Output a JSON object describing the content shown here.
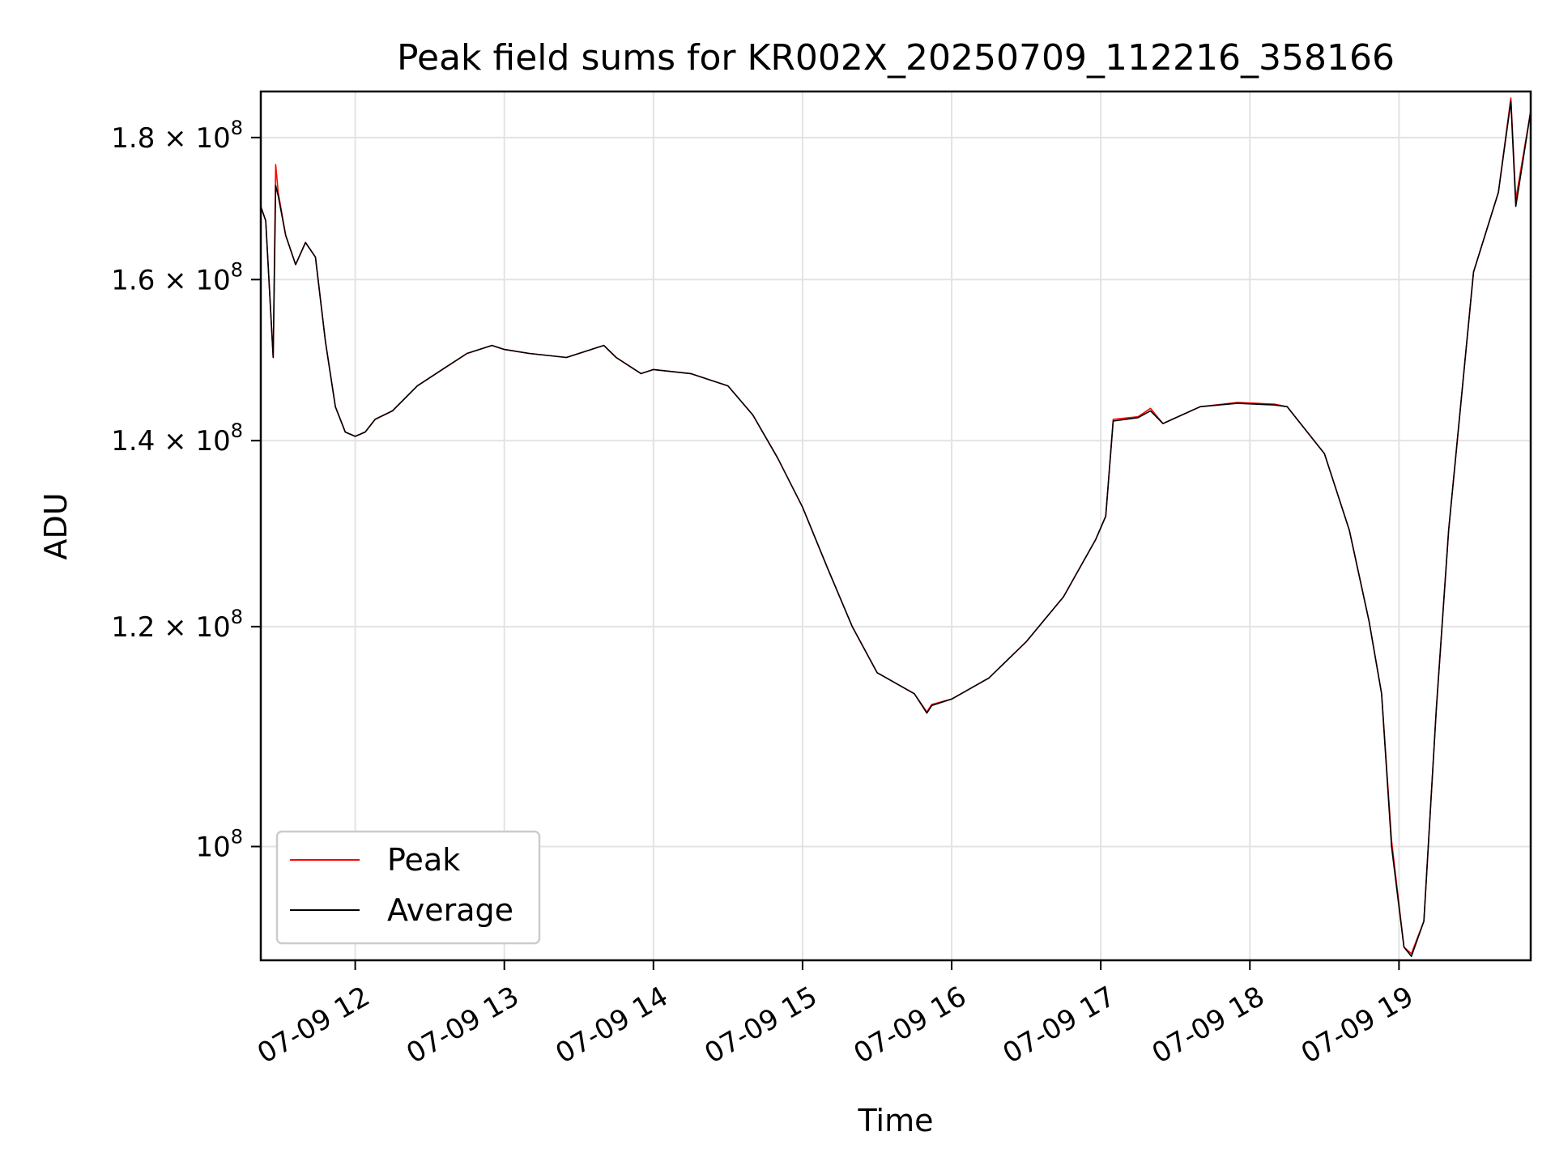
{
  "chart_data": {
    "type": "line",
    "title": "Peak field sums for KR002X_20250709_112216_358166",
    "xlabel": "Time",
    "ylabel": "ADU",
    "y_scale": "log",
    "grid": true,
    "legend_position": "lower-left",
    "xlim": [
      "2025-07-09T11:22",
      "2025-07-09T19:53"
    ],
    "ylim": [
      91000000,
      187000000
    ],
    "x_ticks": [
      {
        "t": "2025-07-09T12:00",
        "label": "07-09 12"
      },
      {
        "t": "2025-07-09T13:00",
        "label": "07-09 13"
      },
      {
        "t": "2025-07-09T14:00",
        "label": "07-09 14"
      },
      {
        "t": "2025-07-09T15:00",
        "label": "07-09 15"
      },
      {
        "t": "2025-07-09T16:00",
        "label": "07-09 16"
      },
      {
        "t": "2025-07-09T17:00",
        "label": "07-09 17"
      },
      {
        "t": "2025-07-09T18:00",
        "label": "07-09 18"
      },
      {
        "t": "2025-07-09T19:00",
        "label": "07-09 19"
      }
    ],
    "y_ticks": [
      {
        "v": 100000000,
        "mantissa": "",
        "exp": "8"
      },
      {
        "v": 120000000,
        "mantissa": "1.2",
        "exp": "8"
      },
      {
        "v": 140000000,
        "mantissa": "1.4",
        "exp": "8"
      },
      {
        "v": 160000000,
        "mantissa": "1.6",
        "exp": "8"
      },
      {
        "v": 180000000,
        "mantissa": "1.8",
        "exp": "8"
      }
    ],
    "x": [
      "2025-07-09T11:22",
      "2025-07-09T11:24",
      "2025-07-09T11:27",
      "2025-07-09T11:28",
      "2025-07-09T11:29",
      "2025-07-09T11:32",
      "2025-07-09T11:36",
      "2025-07-09T11:40",
      "2025-07-09T11:44",
      "2025-07-09T11:48",
      "2025-07-09T11:52",
      "2025-07-09T11:56",
      "2025-07-09T12:00",
      "2025-07-09T12:04",
      "2025-07-09T12:08",
      "2025-07-09T12:15",
      "2025-07-09T12:25",
      "2025-07-09T12:35",
      "2025-07-09T12:45",
      "2025-07-09T12:55",
      "2025-07-09T13:00",
      "2025-07-09T13:10",
      "2025-07-09T13:25",
      "2025-07-09T13:40",
      "2025-07-09T13:45",
      "2025-07-09T13:55",
      "2025-07-09T14:00",
      "2025-07-09T14:15",
      "2025-07-09T14:30",
      "2025-07-09T14:40",
      "2025-07-09T14:50",
      "2025-07-09T15:00",
      "2025-07-09T15:10",
      "2025-07-09T15:20",
      "2025-07-09T15:30",
      "2025-07-09T15:45",
      "2025-07-09T15:50",
      "2025-07-09T15:52",
      "2025-07-09T16:00",
      "2025-07-09T16:15",
      "2025-07-09T16:30",
      "2025-07-09T16:45",
      "2025-07-09T16:58",
      "2025-07-09T17:02",
      "2025-07-09T17:05",
      "2025-07-09T17:15",
      "2025-07-09T17:20",
      "2025-07-09T17:25",
      "2025-07-09T17:40",
      "2025-07-09T17:55",
      "2025-07-09T18:10",
      "2025-07-09T18:15",
      "2025-07-09T18:30",
      "2025-07-09T18:40",
      "2025-07-09T18:48",
      "2025-07-09T18:53",
      "2025-07-09T18:57",
      "2025-07-09T19:02",
      "2025-07-09T19:05",
      "2025-07-09T19:10",
      "2025-07-09T19:15",
      "2025-07-09T19:20",
      "2025-07-09T19:30",
      "2025-07-09T19:40",
      "2025-07-09T19:45",
      "2025-07-09T19:47",
      "2025-07-09T19:53"
    ],
    "series": [
      {
        "name": "Peak",
        "color": "#ff0000",
        "values": [
          170000000,
          168000000,
          150000000,
          176000000,
          172000000,
          166000000,
          162000000,
          165000000,
          163000000,
          152000000,
          144000000,
          141000000,
          140500000,
          141000000,
          142500000,
          143500000,
          146500000,
          148500000,
          150500000,
          151500000,
          151000000,
          150500000,
          150000000,
          151500000,
          150000000,
          148000000,
          148500000,
          148000000,
          146500000,
          143000000,
          138000000,
          132500000,
          126000000,
          120000000,
          115500000,
          113500000,
          111800000,
          112500000,
          113000000,
          115000000,
          118500000,
          123000000,
          129000000,
          131500000,
          142500000,
          142800000,
          143800000,
          142000000,
          144000000,
          144500000,
          144300000,
          144000000,
          138500000,
          130000000,
          120500000,
          113500000,
          100500000,
          92000000,
          91500000,
          94000000,
          112000000,
          130000000,
          161000000,
          172000000,
          186000000,
          171000000,
          184000000
        ]
      },
      {
        "name": "Average",
        "color": "#000000",
        "values": [
          170000000,
          168000000,
          150000000,
          173000000,
          171500000,
          166000000,
          162000000,
          165000000,
          163000000,
          152000000,
          144000000,
          141000000,
          140500000,
          141000000,
          142500000,
          143500000,
          146500000,
          148500000,
          150500000,
          151500000,
          151000000,
          150500000,
          150000000,
          151500000,
          150000000,
          148000000,
          148500000,
          148000000,
          146500000,
          143000000,
          138000000,
          132500000,
          126000000,
          120000000,
          115500000,
          113500000,
          111700000,
          112400000,
          113000000,
          115000000,
          118500000,
          123000000,
          129000000,
          131500000,
          142300000,
          142700000,
          143500000,
          142000000,
          144000000,
          144400000,
          144200000,
          144000000,
          138500000,
          130000000,
          120500000,
          113500000,
          100000000,
          92000000,
          91300000,
          94000000,
          112000000,
          130000000,
          161000000,
          172000000,
          185500000,
          170000000,
          184000000
        ]
      }
    ]
  }
}
